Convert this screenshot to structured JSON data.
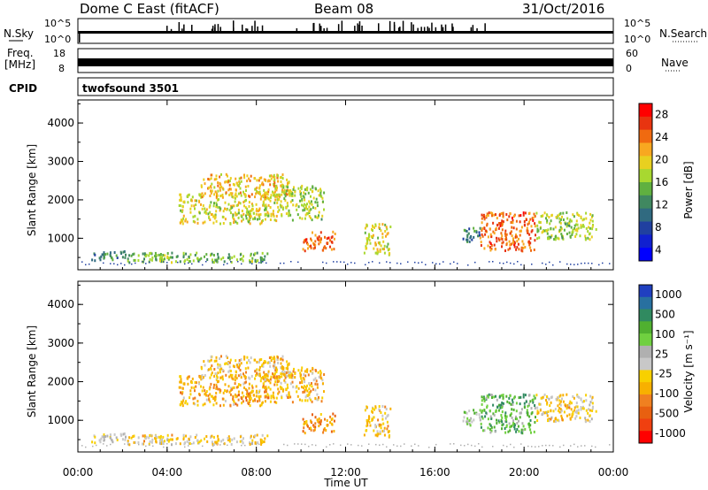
{
  "header": {
    "radar": "Dome C East (fitACF)",
    "beam": "Beam 08",
    "date": "31/Oct/2016"
  },
  "strips": {
    "nsky_label": "N.Sky",
    "nsky_ticks": [
      "10^5",
      "10^0"
    ],
    "nsearch_label": "N.Search",
    "nsearch_ticks": [
      "10^5",
      "10^0"
    ],
    "freq_label": "Freq.",
    "freq_unit": "[MHz]",
    "freq_ticks": [
      "18",
      "8"
    ],
    "nave_label": "Nave",
    "nave_ticks": [
      "60",
      "0"
    ],
    "cpid_label": "CPID",
    "cpid_value": "twofsound 3501"
  },
  "axes": {
    "ylabel": "Slant Range [km]",
    "xlabel": "Time UT",
    "yticks": [
      "4000",
      "3000",
      "2000",
      "1000"
    ],
    "xticks": [
      "00:00",
      "04:00",
      "08:00",
      "12:00",
      "16:00",
      "20:00",
      "00:00"
    ]
  },
  "power_colorbar": {
    "label": "Power [dB]",
    "ticks": [
      "28",
      "24",
      "20",
      "16",
      "12",
      "8",
      "4"
    ],
    "colors": [
      "#ff0000",
      "#e83410",
      "#f06a10",
      "#f8a820",
      "#e8d020",
      "#a8d830",
      "#60b040",
      "#408860",
      "#306a80",
      "#2040a0",
      "#1020d0",
      "#0000ff"
    ]
  },
  "velocity_colorbar": {
    "label": "Velocity [m s⁻¹]",
    "ticks": [
      "1000",
      "500",
      "100",
      "25",
      "-25",
      "-100",
      "-500",
      "-1000"
    ],
    "colors": [
      "#2040c0",
      "#2870a0",
      "#308a60",
      "#50b030",
      "#70d040",
      "#b0b0b0",
      "#c8c8c8",
      "#f8d000",
      "#f8b000",
      "#f08020",
      "#e86010",
      "#f04010",
      "#ff0000"
    ]
  },
  "chart_data": {
    "type": "heatmap",
    "title": "Dome C East (fitACF)",
    "xlabel": "Time UT",
    "ylabel": "Slant Range [km]",
    "xlim": [
      0,
      24
    ],
    "ylim": [
      180,
      4600
    ],
    "panels": [
      {
        "name": "Power [dB]",
        "scale": [
          0,
          30
        ],
        "regions": [
          {
            "t0": 0.6,
            "t1": 2.2,
            "r0": 450,
            "r1": 700,
            "value": 10
          },
          {
            "t0": 2.2,
            "t1": 8.5,
            "r0": 400,
            "r1": 650,
            "value": 14
          },
          {
            "t0": 3.0,
            "t1": 4.2,
            "r0": 450,
            "r1": 650,
            "value": 16
          },
          {
            "t0": 4.5,
            "t1": 9.0,
            "r0": 1400,
            "r1": 2200,
            "value": 18
          },
          {
            "t0": 5.5,
            "t1": 9.5,
            "r0": 2100,
            "r1": 2700,
            "value": 20
          },
          {
            "t0": 9.0,
            "t1": 11.0,
            "r0": 1500,
            "r1": 2400,
            "value": 16
          },
          {
            "t0": 10.0,
            "t1": 11.5,
            "r0": 700,
            "r1": 1200,
            "value": 24
          },
          {
            "t0": 12.8,
            "t1": 14.0,
            "r0": 600,
            "r1": 1400,
            "value": 18
          },
          {
            "t0": 17.2,
            "t1": 18.0,
            "r0": 900,
            "r1": 1300,
            "value": 10
          },
          {
            "t0": 18.0,
            "t1": 20.5,
            "r0": 700,
            "r1": 1700,
            "value": 24
          },
          {
            "t0": 20.5,
            "t1": 23.2,
            "r0": 1000,
            "r1": 1700,
            "value": 16
          }
        ]
      },
      {
        "name": "Velocity [m s⁻¹]",
        "scale": [
          -1000,
          1000
        ],
        "regions": [
          {
            "t0": 0.6,
            "t1": 2.2,
            "r0": 450,
            "r1": 700,
            "value": 0
          },
          {
            "t0": 2.2,
            "t1": 8.5,
            "r0": 400,
            "r1": 650,
            "value": -150
          },
          {
            "t0": 3.0,
            "t1": 4.2,
            "r0": 450,
            "r1": 650,
            "value": -80
          },
          {
            "t0": 4.5,
            "t1": 9.0,
            "r0": 1400,
            "r1": 2200,
            "value": -300
          },
          {
            "t0": 5.5,
            "t1": 9.5,
            "r0": 2100,
            "r1": 2700,
            "value": -200
          },
          {
            "t0": 9.0,
            "t1": 11.0,
            "r0": 1500,
            "r1": 2400,
            "value": -250
          },
          {
            "t0": 10.0,
            "t1": 11.5,
            "r0": 700,
            "r1": 1200,
            "value": -400
          },
          {
            "t0": 12.8,
            "t1": 14.0,
            "r0": 600,
            "r1": 1400,
            "value": -200
          },
          {
            "t0": 17.2,
            "t1": 18.0,
            "r0": 900,
            "r1": 1300,
            "value": 200
          },
          {
            "t0": 18.0,
            "t1": 20.5,
            "r0": 700,
            "r1": 1700,
            "value": 400
          },
          {
            "t0": 20.5,
            "t1": 23.2,
            "r0": 1000,
            "r1": 1700,
            "value": -150
          }
        ]
      }
    ]
  }
}
